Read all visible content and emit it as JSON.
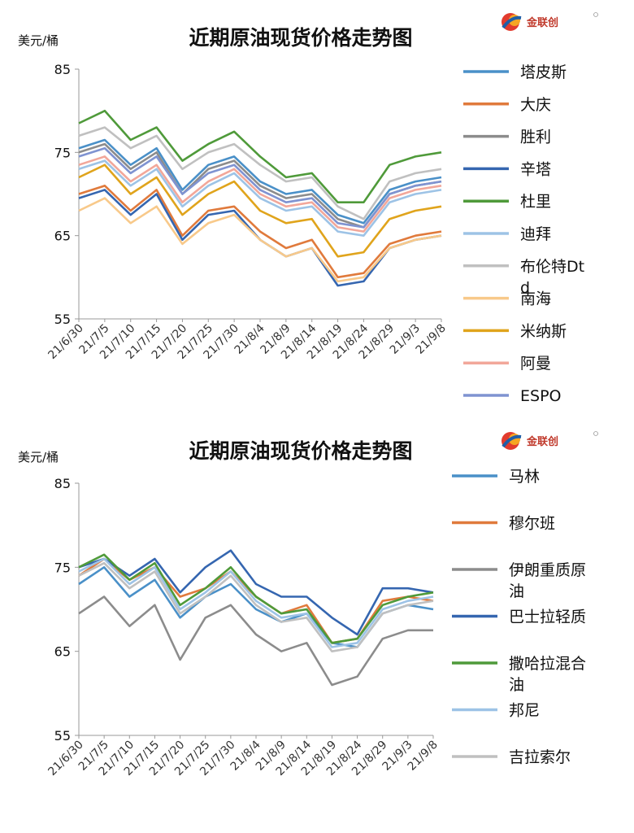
{
  "chart_data": [
    {
      "type": "line",
      "title": "近期原油现货价格走势图",
      "ylabel": "美元/桶",
      "ylim": [
        55,
        85
      ],
      "yticks": [
        "85",
        "75",
        "65",
        "55"
      ],
      "x": [
        "21/6/30",
        "21/7/5",
        "21/7/10",
        "21/7/15",
        "21/7/20",
        "21/7/25",
        "21/7/30",
        "21/8/4",
        "21/8/9",
        "21/8/14",
        "21/8/19",
        "21/8/24",
        "21/8/29",
        "21/9/3",
        "21/9/8"
      ],
      "grid": false,
      "legend_position": "right",
      "logo": "金联创",
      "series": [
        {
          "name": "塔皮斯",
          "color": "#4a90c8",
          "values": [
            75.5,
            76.5,
            73.5,
            75.5,
            70.5,
            73.5,
            74.5,
            71.5,
            70.0,
            70.5,
            67.5,
            66.5,
            70.5,
            71.5,
            72.0
          ]
        },
        {
          "name": "大庆",
          "color": "#e07a3c",
          "values": [
            70.0,
            71.0,
            68.0,
            70.5,
            65.0,
            68.0,
            68.5,
            65.5,
            63.5,
            64.5,
            60.0,
            60.5,
            64.0,
            65.0,
            65.5
          ]
        },
        {
          "name": "胜利",
          "color": "#8c8c8c",
          "values": [
            75.0,
            76.0,
            73.0,
            75.0,
            70.0,
            73.0,
            74.0,
            71.0,
            69.5,
            70.0,
            67.0,
            66.0,
            70.0,
            71.0,
            71.5
          ]
        },
        {
          "name": "辛塔",
          "color": "#3566b0",
          "values": [
            69.5,
            70.5,
            67.5,
            70.0,
            64.5,
            67.5,
            68.0,
            64.5,
            62.5,
            63.5,
            59.0,
            59.5,
            63.5,
            64.5,
            65.0
          ]
        },
        {
          "name": "杜里",
          "color": "#4f9a3a",
          "values": [
            78.5,
            80.0,
            76.5,
            78.0,
            74.0,
            76.0,
            77.5,
            74.5,
            72.0,
            72.5,
            69.0,
            69.0,
            73.5,
            74.5,
            75.0
          ]
        },
        {
          "name": "迪拜",
          "color": "#9dc3e6",
          "values": [
            73.0,
            74.0,
            71.0,
            73.0,
            68.5,
            71.0,
            72.5,
            69.5,
            68.0,
            68.5,
            65.5,
            65.0,
            69.0,
            70.0,
            70.5
          ]
        },
        {
          "name": "布伦特Dtd",
          "color": "#c0c0c0",
          "values": [
            77.0,
            78.0,
            75.5,
            77.0,
            73.0,
            75.0,
            76.0,
            73.5,
            71.5,
            72.0,
            68.5,
            67.0,
            71.5,
            72.5,
            73.0
          ]
        },
        {
          "name": "南海",
          "color": "#f8c98a",
          "values": [
            68.0,
            69.5,
            66.5,
            68.5,
            64.0,
            66.5,
            67.5,
            64.5,
            62.5,
            63.5,
            59.5,
            60.0,
            63.5,
            64.5,
            65.0
          ]
        },
        {
          "name": "米纳斯",
          "color": "#e0a41c",
          "values": [
            72.0,
            73.5,
            70.0,
            72.0,
            67.5,
            70.0,
            71.5,
            68.0,
            66.5,
            67.0,
            62.5,
            63.0,
            67.0,
            68.0,
            68.5
          ]
        },
        {
          "name": "阿曼",
          "color": "#f2a79a",
          "values": [
            73.5,
            74.5,
            71.5,
            73.5,
            69.0,
            71.5,
            73.0,
            70.0,
            68.5,
            69.0,
            66.0,
            65.5,
            69.5,
            70.5,
            71.0
          ]
        },
        {
          "name": "ESPO",
          "color": "#7f93d1",
          "values": [
            74.5,
            75.5,
            72.5,
            74.5,
            70.0,
            72.5,
            73.5,
            70.5,
            69.0,
            69.5,
            66.5,
            66.0,
            70.0,
            71.0,
            71.5
          ]
        }
      ]
    },
    {
      "type": "line",
      "title": "近期原油现货价格走势图",
      "ylabel": "美元/桶",
      "ylim": [
        55,
        85
      ],
      "yticks": [
        "85",
        "75",
        "65",
        "55"
      ],
      "x": [
        "21/6/30",
        "21/7/5",
        "21/7/10",
        "21/7/15",
        "21/7/20",
        "21/7/25",
        "21/7/30",
        "21/8/4",
        "21/8/9",
        "21/8/14",
        "21/8/19",
        "21/8/24",
        "21/8/29",
        "21/9/3",
        "21/9/8"
      ],
      "grid": false,
      "legend_position": "right",
      "logo": "金联创",
      "series": [
        {
          "name": "马林",
          "color": "#4a90c8",
          "values": [
            73.0,
            75.0,
            71.5,
            73.5,
            69.0,
            71.5,
            73.0,
            70.0,
            68.5,
            69.5,
            66.0,
            65.5,
            69.5,
            70.5,
            70.0
          ]
        },
        {
          "name": "穆尔班",
          "color": "#e07a3c",
          "values": [
            74.0,
            76.0,
            73.5,
            75.0,
            71.5,
            72.5,
            74.5,
            71.5,
            69.5,
            70.5,
            66.0,
            66.5,
            71.0,
            71.5,
            71.0
          ]
        },
        {
          "name": "伊朗重质原油",
          "color": "#8c8c8c",
          "values": [
            69.5,
            71.5,
            68.0,
            70.5,
            64.0,
            69.0,
            70.5,
            67.0,
            65.0,
            66.0,
            61.0,
            62.0,
            66.5,
            67.5,
            67.5
          ]
        },
        {
          "name": "巴士拉轻质",
          "color": "#3566b0",
          "values": [
            75.0,
            76.0,
            74.0,
            76.0,
            72.0,
            75.0,
            77.0,
            73.0,
            71.5,
            71.5,
            69.0,
            67.0,
            72.5,
            72.5,
            72.0
          ]
        },
        {
          "name": "撒哈拉混合油",
          "color": "#4f9a3a",
          "values": [
            75.0,
            76.5,
            73.5,
            75.5,
            70.5,
            72.5,
            75.0,
            71.5,
            69.5,
            70.0,
            66.0,
            66.5,
            70.5,
            71.5,
            72.0
          ]
        },
        {
          "name": "邦尼",
          "color": "#9dc3e6",
          "values": [
            74.5,
            76.0,
            73.0,
            75.0,
            70.0,
            72.0,
            74.5,
            71.0,
            69.0,
            69.5,
            65.5,
            66.0,
            70.0,
            71.0,
            71.5
          ]
        },
        {
          "name": "吉拉索尔",
          "color": "#c0c0c0",
          "values": [
            74.0,
            75.5,
            72.5,
            74.5,
            69.5,
            71.5,
            74.0,
            70.5,
            68.5,
            69.0,
            65.0,
            65.5,
            69.5,
            70.5,
            71.0
          ]
        }
      ]
    }
  ]
}
